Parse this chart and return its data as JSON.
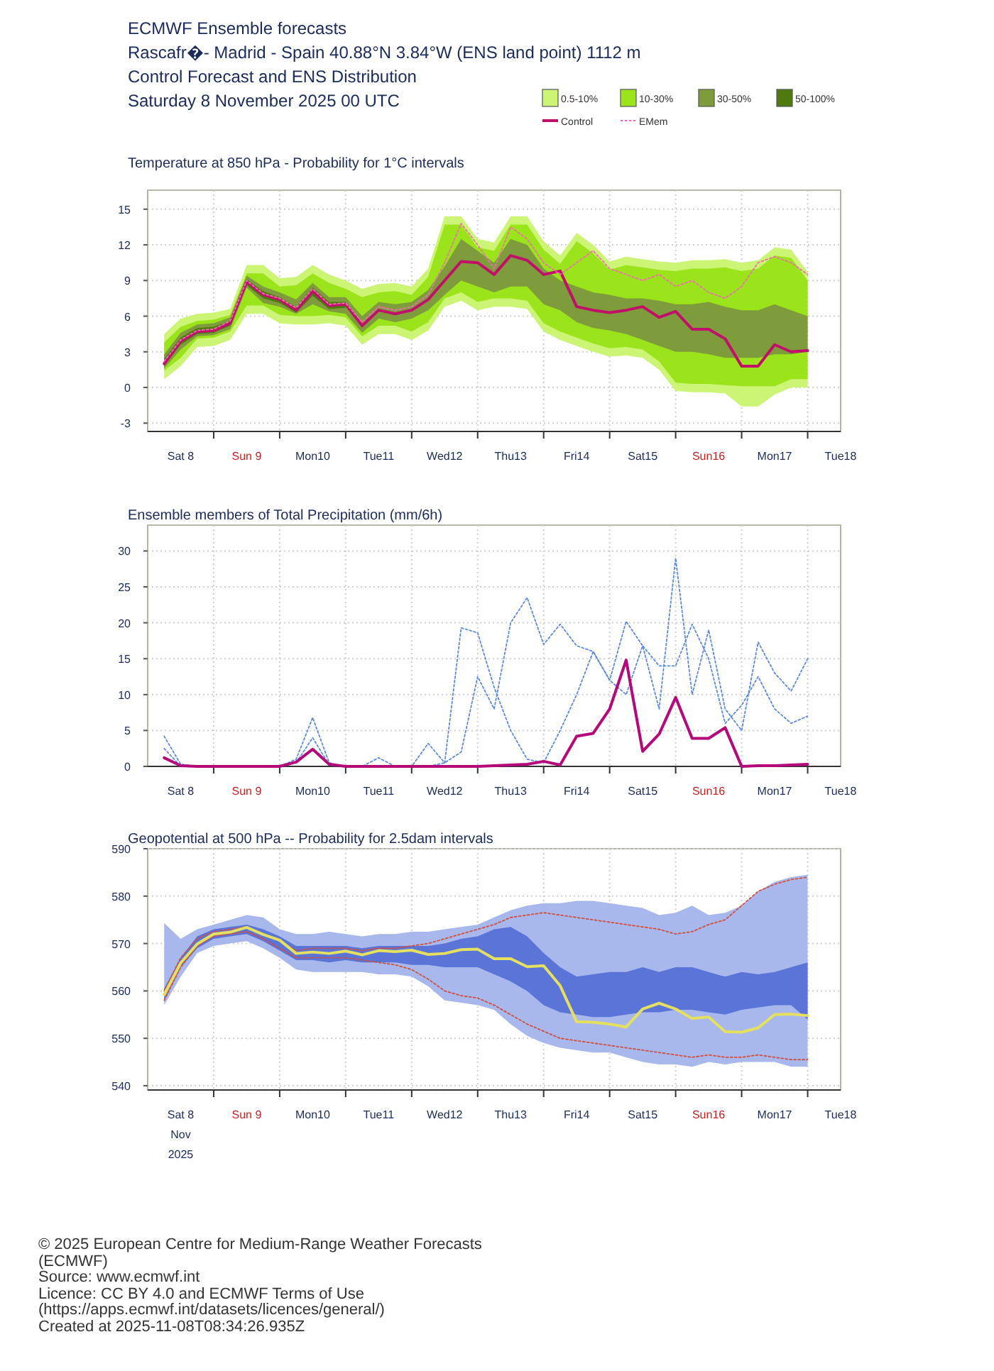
{
  "chart_data": [
    {
      "type": "other",
      "title": "ECMWF Ensemble forecasts",
      "annotations": [
        "Rascafr�- Madrid - Spain 40.88°N 3.84°W (ENS land point) 1112 m",
        "Control Forecast and ENS Distribution",
        "Saturday 8 November 2025 00 UTC"
      ]
    },
    {
      "type": "line",
      "title": "Temperature at 850 hPa - Probability for 1°C intervals",
      "grid": true,
      "legend": "top right",
      "xlim": [
        "2025-11-08T00:00",
        "2025-11-18T12:00"
      ],
      "xticks": [
        {
          "value": "2025-11-08T12:00",
          "label": "Sat 8"
        },
        {
          "value": "2025-11-09T00:00",
          "label": null
        },
        {
          "value": "2025-11-09T12:00",
          "label": "Sun 9"
        },
        {
          "value": "2025-11-10T00:00",
          "label": null
        },
        {
          "value": "2025-11-10T12:00",
          "label": "Mon10"
        },
        {
          "value": "2025-11-11T00:00",
          "label": null
        },
        {
          "value": "2025-11-11T12:00",
          "label": "Tue11"
        },
        {
          "value": "2025-11-12T00:00",
          "label": null
        },
        {
          "value": "2025-11-12T12:00",
          "label": "Wed12"
        },
        {
          "value": "2025-11-13T00:00",
          "label": null
        },
        {
          "value": "2025-11-13T12:00",
          "label": "Thu13"
        },
        {
          "value": "2025-11-14T00:00",
          "label": null
        },
        {
          "value": "2025-11-14T12:00",
          "label": "Fri14"
        },
        {
          "value": "2025-11-15T00:00",
          "label": null
        },
        {
          "value": "2025-11-15T12:00",
          "label": "Sat15"
        },
        {
          "value": "2025-11-16T00:00",
          "label": null
        },
        {
          "value": "2025-11-16T12:00",
          "label": "Sun16"
        },
        {
          "value": "2025-11-17T00:00",
          "label": null
        },
        {
          "value": "2025-11-17T12:00",
          "label": "Mon17"
        },
        {
          "value": "2025-11-18T00:00",
          "label": null
        },
        {
          "value": "2025-11-18T12:00",
          "label": "Tue18"
        }
      ],
      "ylim": [
        -3.7,
        16.6
      ],
      "yticks": [
        -3,
        0,
        3,
        6,
        9,
        12,
        15
      ],
      "x": [
        "2025-11-08T06:00",
        "2025-11-08T12:00",
        "2025-11-08T18:00",
        "2025-11-09T00:00",
        "2025-11-09T06:00",
        "2025-11-09T12:00",
        "2025-11-09T18:00",
        "2025-11-10T00:00",
        "2025-11-10T06:00",
        "2025-11-10T12:00",
        "2025-11-10T18:00",
        "2025-11-11T00:00",
        "2025-11-11T06:00",
        "2025-11-11T12:00",
        "2025-11-11T18:00",
        "2025-11-12T00:00",
        "2025-11-12T06:00",
        "2025-11-12T12:00",
        "2025-11-12T18:00",
        "2025-11-13T00:00",
        "2025-11-13T06:00",
        "2025-11-13T12:00",
        "2025-11-13T18:00",
        "2025-11-14T00:00",
        "2025-11-14T06:00",
        "2025-11-14T12:00",
        "2025-11-14T18:00",
        "2025-11-15T00:00",
        "2025-11-15T06:00",
        "2025-11-15T12:00",
        "2025-11-15T18:00",
        "2025-11-16T00:00",
        "2025-11-16T06:00",
        "2025-11-16T12:00",
        "2025-11-16T18:00",
        "2025-11-17T00:00",
        "2025-11-17T06:00",
        "2025-11-17T12:00",
        "2025-11-17T18:00",
        "2025-11-18T00:00"
      ],
      "series": [
        {
          "name": "0.5-10%",
          "type": "line",
          "color": "#ccf576",
          "values": [
            null,
            null,
            null,
            null,
            null,
            null,
            null,
            null,
            null,
            null,
            null,
            null,
            null,
            null,
            null,
            null,
            null,
            null,
            null,
            null,
            null,
            null,
            null,
            null,
            null,
            null,
            null,
            null,
            null,
            null,
            null,
            null,
            null,
            null,
            null,
            null,
            null,
            null,
            null,
            null
          ],
          "upper": [
            4.5,
            5.8,
            6.2,
            6.3,
            6.6,
            10.3,
            10.3,
            9.2,
            9.3,
            10.3,
            9.5,
            9.0,
            8.3,
            8.7,
            8.8,
            8.5,
            10.0,
            14.4,
            14.4,
            12.5,
            12.2,
            14.4,
            14.4,
            12.3,
            11.1,
            13.0,
            12.0,
            10.6,
            11.0,
            10.8,
            10.6,
            10.5,
            10.7,
            10.7,
            10.8,
            10.5,
            10.7,
            11.8,
            11.6,
            9.7
          ],
          "lower": [
            0.7,
            1.8,
            3.4,
            3.5,
            4.0,
            6.2,
            6.2,
            5.4,
            5.3,
            5.3,
            5.4,
            5.2,
            3.6,
            4.5,
            4.5,
            4.0,
            4.8,
            6.8,
            7.3,
            6.5,
            6.8,
            6.8,
            6.6,
            4.7,
            4.0,
            3.5,
            3.0,
            2.6,
            2.7,
            2.5,
            1.5,
            -0.3,
            -0.4,
            -0.4,
            -0.5,
            -1.6,
            -1.6,
            -0.6,
            0,
            0
          ]
        },
        {
          "name": "10-30%",
          "type": "line",
          "color": "#9be31a",
          "values": [
            null,
            null,
            null,
            null,
            null,
            null,
            null,
            null,
            null,
            null,
            null,
            null,
            null,
            null,
            null,
            null,
            null,
            null,
            null,
            null,
            null,
            null,
            null,
            null,
            null,
            null,
            null,
            null,
            null,
            null,
            null,
            null,
            null,
            null,
            null,
            null,
            null,
            null,
            null,
            null
          ],
          "upper": [
            3.8,
            5.1,
            5.6,
            5.7,
            6.1,
            9.6,
            9.6,
            8.5,
            8.6,
            9.6,
            8.8,
            8.3,
            7.6,
            8.0,
            8.1,
            7.8,
            9.3,
            13.7,
            13.7,
            11.8,
            11.5,
            13.7,
            13.7,
            11.6,
            10.4,
            12.3,
            11.3,
            9.9,
            10.3,
            10.1,
            9.9,
            9.8,
            10.0,
            10.0,
            10.1,
            9.8,
            10.0,
            11.1,
            10.9,
            9.0
          ],
          "lower": [
            1.4,
            2.5,
            4.1,
            4.2,
            4.7,
            6.9,
            6.9,
            6.1,
            6.0,
            6.0,
            6.1,
            5.9,
            4.3,
            5.2,
            5.2,
            4.7,
            5.5,
            7.5,
            8.0,
            7.2,
            7.5,
            7.5,
            7.3,
            5.4,
            4.7,
            4.2,
            3.7,
            3.3,
            3.4,
            3.2,
            2.2,
            0.4,
            0.3,
            0.3,
            0.2,
            0.1,
            0.1,
            0.1,
            0.7,
            0.7
          ]
        },
        {
          "name": "30-50%",
          "type": "line",
          "color": "#7f9c3c",
          "values": [
            null,
            null,
            null,
            null,
            null,
            null,
            null,
            null,
            null,
            null,
            null,
            null,
            null,
            null,
            null,
            null,
            null,
            null,
            null,
            null,
            null,
            null,
            null,
            null,
            null,
            null,
            null,
            null,
            null,
            null,
            null,
            null,
            null,
            null,
            null,
            null,
            null,
            null,
            null,
            null
          ],
          "upper": [
            2.8,
            4.6,
            5.3,
            5.4,
            5.9,
            9.4,
            8.5,
            8.0,
            7.4,
            8.8,
            7.6,
            7.6,
            6.0,
            7.2,
            7.0,
            7.2,
            8.2,
            10.2,
            12.5,
            11.5,
            10.5,
            12.5,
            12.0,
            10.0,
            9.0,
            8.5,
            8.0,
            7.8,
            7.5,
            7.5,
            7.3,
            7.0,
            7.0,
            7.2,
            6.8,
            6.5,
            6.5,
            7.0,
            6.5,
            6.0
          ],
          "lower": [
            1.6,
            3.2,
            4.3,
            4.4,
            4.9,
            8.4,
            7.1,
            6.8,
            6.2,
            7.0,
            6.4,
            6.2,
            4.6,
            5.8,
            5.5,
            5.8,
            6.5,
            7.8,
            9.0,
            8.5,
            8.0,
            8.5,
            8.5,
            7.0,
            6.5,
            5.5,
            5.0,
            4.8,
            4.5,
            4.0,
            3.5,
            3.0,
            3.0,
            2.8,
            2.5,
            2.5,
            2.5,
            2.8,
            2.8,
            3.0
          ]
        },
        {
          "name": "50-100%",
          "type": "line",
          "color": "#4f7a10",
          "x": [
            "2025-11-08T06:00",
            "2025-11-08T12:00",
            "2025-11-08T18:00",
            "2025-11-09T00:00",
            "2025-11-09T06:00",
            "2025-11-09T12:00",
            "2025-11-09T18:00",
            "2025-11-10T00:00",
            "2025-11-10T06:00",
            "2025-11-10T12:00",
            "2025-11-10T18:00",
            "2025-11-11T00:00"
          ],
          "values": [
            null,
            null,
            null,
            null,
            null,
            null,
            null,
            null,
            null,
            null,
            null,
            null
          ],
          "upper": [
            2.4,
            4.2,
            5.0,
            5.1,
            5.6,
            9.1,
            8.1,
            7.6,
            6.8,
            8.4,
            7.2,
            7.2
          ],
          "lower": [
            1.8,
            3.6,
            4.5,
            4.6,
            5.2,
            8.6,
            7.5,
            7.1,
            6.3,
            7.7,
            6.6,
            6.7
          ]
        },
        {
          "name": "Control",
          "type": "line",
          "color": "#c0106a",
          "line_style": "solid",
          "values": [
            2.0,
            3.9,
            4.7,
            4.8,
            5.4,
            8.9,
            7.8,
            7.4,
            6.5,
            8.1,
            6.9,
            7.0,
            5.2,
            6.5,
            6.2,
            6.5,
            7.4,
            9.0,
            10.6,
            10.5,
            9.5,
            11.1,
            10.7,
            9.5,
            9.8,
            6.8,
            6.5,
            6.3,
            6.5,
            6.8,
            5.9,
            6.4,
            4.9,
            4.9,
            4.1,
            1.8,
            1.8,
            3.6,
            3.0,
            3.1
          ]
        },
        {
          "name": "EMem",
          "type": "line",
          "color": "#ef6fb0",
          "line_style": "dotted",
          "values": [
            2.2,
            4.0,
            4.8,
            4.9,
            5.6,
            9.0,
            7.9,
            7.5,
            6.7,
            8.3,
            7.0,
            7.1,
            5.5,
            6.8,
            6.5,
            6.8,
            7.8,
            10.5,
            13.8,
            12.0,
            10.0,
            13.5,
            12.5,
            10.5,
            9.5,
            10.5,
            11.5,
            10.0,
            9.5,
            9.0,
            9.5,
            8.5,
            9.0,
            8.0,
            7.5,
            8.5,
            10.5,
            11.0,
            10.5,
            9.5
          ]
        }
      ]
    },
    {
      "type": "line",
      "title": "Ensemble members of Total Precipitation (mm/6h)",
      "grid": true,
      "xlim": [
        "2025-11-08T00:00",
        "2025-11-18T12:00"
      ],
      "xticks": [
        {
          "value": "2025-11-08T12:00",
          "label": "Sat 8"
        },
        {
          "value": "2025-11-09T00:00",
          "label": null
        },
        {
          "value": "2025-11-09T12:00",
          "label": "Sun 9"
        },
        {
          "value": "2025-11-10T00:00",
          "label": null
        },
        {
          "value": "2025-11-10T12:00",
          "label": "Mon10"
        },
        {
          "value": "2025-11-11T00:00",
          "label": null
        },
        {
          "value": "2025-11-11T12:00",
          "label": "Tue11"
        },
        {
          "value": "2025-11-12T00:00",
          "label": null
        },
        {
          "value": "2025-11-12T12:00",
          "label": "Wed12"
        },
        {
          "value": "2025-11-13T00:00",
          "label": null
        },
        {
          "value": "2025-11-13T12:00",
          "label": "Thu13"
        },
        {
          "value": "2025-11-14T00:00",
          "label": null
        },
        {
          "value": "2025-11-14T12:00",
          "label": "Fri14"
        },
        {
          "value": "2025-11-15T00:00",
          "label": null
        },
        {
          "value": "2025-11-15T12:00",
          "label": "Sat15"
        },
        {
          "value": "2025-11-16T00:00",
          "label": null
        },
        {
          "value": "2025-11-16T12:00",
          "label": "Sun16"
        },
        {
          "value": "2025-11-17T00:00",
          "label": null
        },
        {
          "value": "2025-11-17T12:00",
          "label": "Mon17"
        },
        {
          "value": "2025-11-18T00:00",
          "label": null
        },
        {
          "value": "2025-11-18T12:00",
          "label": "Tue18"
        }
      ],
      "ylim": [
        0,
        33.6
      ],
      "yticks": [
        0,
        5,
        10,
        15,
        20,
        25,
        30
      ],
      "x": [
        "2025-11-08T06:00",
        "2025-11-08T12:00",
        "2025-11-08T18:00",
        "2025-11-09T00:00",
        "2025-11-09T06:00",
        "2025-11-09T12:00",
        "2025-11-09T18:00",
        "2025-11-10T00:00",
        "2025-11-10T06:00",
        "2025-11-10T12:00",
        "2025-11-10T18:00",
        "2025-11-11T00:00",
        "2025-11-11T06:00",
        "2025-11-11T12:00",
        "2025-11-11T18:00",
        "2025-11-12T00:00",
        "2025-11-12T06:00",
        "2025-11-12T12:00",
        "2025-11-12T18:00",
        "2025-11-13T00:00",
        "2025-11-13T06:00",
        "2025-11-13T12:00",
        "2025-11-13T18:00",
        "2025-11-14T00:00",
        "2025-11-14T06:00",
        "2025-11-14T12:00",
        "2025-11-14T18:00",
        "2025-11-15T00:00",
        "2025-11-15T06:00",
        "2025-11-15T12:00",
        "2025-11-15T18:00",
        "2025-11-16T00:00",
        "2025-11-16T06:00",
        "2025-11-16T12:00",
        "2025-11-16T18:00",
        "2025-11-17T00:00",
        "2025-11-17T06:00",
        "2025-11-17T12:00",
        "2025-11-17T18:00",
        "2025-11-18T00:00"
      ],
      "series": [
        {
          "type": "line",
          "color": "#5b8ae0",
          "line_style": "dotted",
          "values": [
            4.2,
            0.3,
            0,
            0,
            0,
            0,
            0,
            0,
            1.0,
            6.8,
            0.5,
            0,
            0,
            1.2,
            0,
            0,
            3.2,
            0.5,
            19.3,
            18.6,
            11.0,
            5.0,
            1.0,
            0.5,
            5.0,
            10.0,
            16.0,
            12.0,
            20.2,
            16.8,
            8.0,
            29.0,
            10.0,
            19.0,
            8.0,
            5.0,
            17.3,
            13.0,
            10.5,
            15.0
          ]
        },
        {
          "type": "line",
          "color": "#5b8ae0",
          "line_style": "dotted",
          "values": [
            2.5,
            0,
            0,
            0,
            0,
            0,
            0,
            0,
            0.5,
            4.0,
            0.2,
            0,
            0,
            0,
            0,
            0,
            0,
            0.5,
            2.0,
            12.5,
            8.0,
            20.0,
            23.5,
            17.0,
            19.8,
            16.8,
            16.0,
            12.0,
            10.0,
            16.8,
            14.0,
            14.0,
            19.8,
            15.0,
            6.0,
            8.5,
            12.5,
            8.0,
            6.0,
            7.0
          ]
        },
        {
          "type": "line",
          "color": "#b5087a",
          "line_style": "solid",
          "values": [
            1.2,
            0.1,
            0,
            0,
            0,
            0,
            0,
            0,
            0.6,
            2.4,
            0.3,
            0,
            0,
            0,
            0,
            0,
            0,
            0,
            0,
            0,
            0.1,
            0.2,
            0.3,
            0.7,
            0.2,
            4.2,
            4.6,
            8.0,
            14.8,
            2.1,
            4.5,
            9.6,
            3.9,
            3.9,
            5.4,
            0,
            0.1,
            0.1,
            0.2,
            0.3
          ]
        }
      ]
    },
    {
      "type": "line",
      "title": "Geopotential at 500 hPa -- Probability for 2.5dam intervals",
      "grid": true,
      "xlim": [
        "2025-11-08T00:00",
        "2025-11-18T12:00"
      ],
      "xticks": [
        {
          "value": "2025-11-08T12:00",
          "label": "Sat 8"
        },
        {
          "value": "2025-11-09T00:00",
          "label": null
        },
        {
          "value": "2025-11-09T12:00",
          "label": "Sun 9"
        },
        {
          "value": "2025-11-10T00:00",
          "label": null
        },
        {
          "value": "2025-11-10T12:00",
          "label": "Mon10"
        },
        {
          "value": "2025-11-11T00:00",
          "label": null
        },
        {
          "value": "2025-11-11T12:00",
          "label": "Tue11"
        },
        {
          "value": "2025-11-12T00:00",
          "label": null
        },
        {
          "value": "2025-11-12T12:00",
          "label": "Wed12"
        },
        {
          "value": "2025-11-13T00:00",
          "label": null
        },
        {
          "value": "2025-11-13T12:00",
          "label": "Thu13"
        },
        {
          "value": "2025-11-14T00:00",
          "label": null
        },
        {
          "value": "2025-11-14T12:00",
          "label": "Fri14"
        },
        {
          "value": "2025-11-15T00:00",
          "label": null
        },
        {
          "value": "2025-11-15T12:00",
          "label": "Sat15"
        },
        {
          "value": "2025-11-16T00:00",
          "label": null
        },
        {
          "value": "2025-11-16T12:00",
          "label": "Sun16"
        },
        {
          "value": "2025-11-17T00:00",
          "label": null
        },
        {
          "value": "2025-11-17T12:00",
          "label": "Mon17"
        },
        {
          "value": "2025-11-18T00:00",
          "label": null
        },
        {
          "value": "2025-11-18T12:00",
          "label": "Tue18"
        }
      ],
      "ylim": [
        539.1,
        590
      ],
      "yticks": [
        540,
        550,
        560,
        570,
        580,
        590
      ],
      "annotations": [
        "Nov",
        "2025"
      ],
      "x": [
        "2025-11-08T06:00",
        "2025-11-08T12:00",
        "2025-11-08T18:00",
        "2025-11-09T00:00",
        "2025-11-09T06:00",
        "2025-11-09T12:00",
        "2025-11-09T18:00",
        "2025-11-10T00:00",
        "2025-11-10T06:00",
        "2025-11-10T12:00",
        "2025-11-10T18:00",
        "2025-11-11T00:00",
        "2025-11-11T06:00",
        "2025-11-11T12:00",
        "2025-11-11T18:00",
        "2025-11-12T00:00",
        "2025-11-12T06:00",
        "2025-11-12T12:00",
        "2025-11-12T18:00",
        "2025-11-13T00:00",
        "2025-11-13T06:00",
        "2025-11-13T12:00",
        "2025-11-13T18:00",
        "2025-11-14T00:00",
        "2025-11-14T06:00",
        "2025-11-14T12:00",
        "2025-11-14T18:00",
        "2025-11-15T00:00",
        "2025-11-15T06:00",
        "2025-11-15T12:00",
        "2025-11-15T18:00",
        "2025-11-16T00:00",
        "2025-11-16T06:00",
        "2025-11-16T12:00",
        "2025-11-16T18:00",
        "2025-11-17T00:00",
        "2025-11-17T06:00",
        "2025-11-17T12:00",
        "2025-11-17T18:00",
        "2025-11-18T00:00"
      ],
      "series": [
        {
          "type": "line",
          "color": "#a8b8ec",
          "values": [
            null,
            null,
            null,
            null,
            null,
            null,
            null,
            null,
            null,
            null,
            null,
            null,
            null,
            null,
            null,
            null,
            null,
            null,
            null,
            null,
            null,
            null,
            null,
            null,
            null,
            null,
            null,
            null,
            null,
            null,
            null,
            null,
            null,
            null,
            null,
            null,
            null,
            null,
            null,
            null
          ],
          "upper": [
            574.3,
            571,
            573,
            574,
            575,
            576,
            575.5,
            573,
            572,
            572,
            572.5,
            572,
            571.5,
            572,
            572,
            572.5,
            572.5,
            573,
            573.5,
            574,
            575.5,
            577,
            578,
            578.5,
            578.5,
            579,
            579,
            578.5,
            578,
            577.5,
            576,
            576.5,
            578,
            576,
            576.5,
            578,
            581,
            583,
            584,
            584.5
          ],
          "lower": [
            557,
            563,
            568,
            569.5,
            570,
            570.5,
            569,
            567,
            564.5,
            564,
            564,
            564,
            564,
            563.5,
            563.5,
            563,
            561,
            558,
            557.5,
            557,
            556,
            553,
            550.5,
            549,
            548,
            547.5,
            547,
            547,
            546,
            545,
            544.5,
            544.5,
            544,
            545,
            544.5,
            545,
            545,
            545,
            544,
            544
          ]
        },
        {
          "type": "line",
          "color": "#5a74d8",
          "values": [
            null,
            null,
            null,
            null,
            null,
            null,
            null,
            null,
            null,
            null,
            null,
            null,
            null,
            null,
            null,
            null,
            null,
            null,
            null,
            null,
            null,
            null,
            null,
            null,
            null,
            null,
            null,
            null,
            null,
            null,
            null,
            null,
            null,
            null,
            null,
            null,
            null,
            null,
            null,
            null
          ],
          "upper": [
            560.5,
            567,
            571.5,
            573,
            573.5,
            574,
            573,
            571.5,
            569.5,
            569.5,
            569.5,
            569.5,
            569,
            569.5,
            569.5,
            569.5,
            569.5,
            570,
            571,
            571.5,
            573,
            573.5,
            571.5,
            568,
            565,
            563,
            563.5,
            564,
            564,
            565,
            564,
            565,
            565,
            564,
            563,
            564,
            563.5,
            564,
            565,
            566
          ],
          "lower": [
            558,
            565,
            569,
            571,
            571.5,
            572,
            570.5,
            568.5,
            566.5,
            566.5,
            566,
            566.5,
            566,
            566,
            566,
            565.5,
            565.5,
            565,
            565,
            565,
            563.5,
            562,
            560,
            557,
            555.5,
            555,
            554.5,
            554.5,
            555,
            555.5,
            555.5,
            556,
            556,
            555.5,
            555,
            556,
            556.5,
            557,
            557,
            554
          ]
        },
        {
          "type": "line",
          "color": "#d05040",
          "line_style": "dotted",
          "values": [
            560,
            567,
            571,
            572.5,
            573,
            573.5,
            572,
            570.5,
            568.5,
            569,
            569,
            569,
            568.5,
            569,
            569,
            569.5,
            570,
            571,
            572,
            573,
            574,
            575.5,
            576,
            576.5,
            576,
            575.5,
            575,
            574.5,
            574,
            573.5,
            573,
            572,
            572.5,
            574,
            575,
            578,
            581,
            582.5,
            583.5,
            584
          ]
        },
        {
          "type": "line",
          "color": "#d05040",
          "line_style": "dotted",
          "values": [
            558,
            565,
            569.5,
            571.5,
            572,
            572.5,
            571,
            569,
            567,
            567,
            567,
            567,
            566.5,
            566,
            565.5,
            564.5,
            562.5,
            560,
            559,
            558.5,
            557,
            555,
            553,
            551.5,
            550,
            549.5,
            549,
            548.5,
            548,
            547.5,
            547,
            546.5,
            546,
            546.5,
            546,
            546,
            546.5,
            546,
            545.5,
            545.5
          ]
        },
        {
          "type": "line",
          "color": "#e6e060",
          "line_style": "solid",
          "values": [
            559.2,
            565.9,
            569.9,
            572.0,
            572.4,
            573.4,
            571.9,
            570.7,
            567.9,
            568.2,
            567.9,
            568.4,
            567.6,
            568.5,
            568.3,
            568.6,
            567.7,
            567.9,
            568.7,
            568.8,
            566.8,
            566.8,
            565.1,
            565.3,
            561.1,
            553.5,
            553.4,
            553.0,
            552.4,
            556.2,
            557.4,
            556.2,
            554.2,
            554.5,
            551.4,
            551.3,
            552.2,
            555.0,
            555.1,
            554.8
          ]
        }
      ]
    },
    {
      "type": "other",
      "annotations": [
        "© 2025 European Centre for Medium-Range Weather Forecasts (ECMWF)",
        "Source: www.ecmwf.int",
        "Licence: CC BY 4.0 and ECMWF Terms of Use (https://apps.ecmwf.int/datasets/licences/general/)",
        "Created at 2025-11-08T08:34:26.935Z"
      ]
    }
  ]
}
